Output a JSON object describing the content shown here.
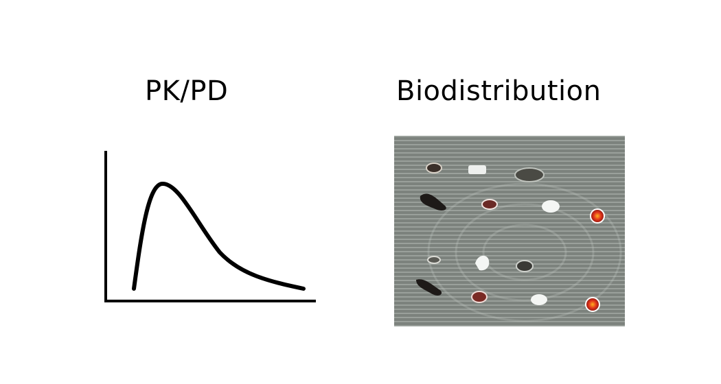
{
  "panels": {
    "pkpd": {
      "title": "PK/PD"
    },
    "biodistribution": {
      "title": "Biodistribution"
    }
  },
  "colors": {
    "background": "#ffffff",
    "stroke": "#000000",
    "tissue_background": "#7c827d",
    "hot_signal": "#e0321b"
  }
}
